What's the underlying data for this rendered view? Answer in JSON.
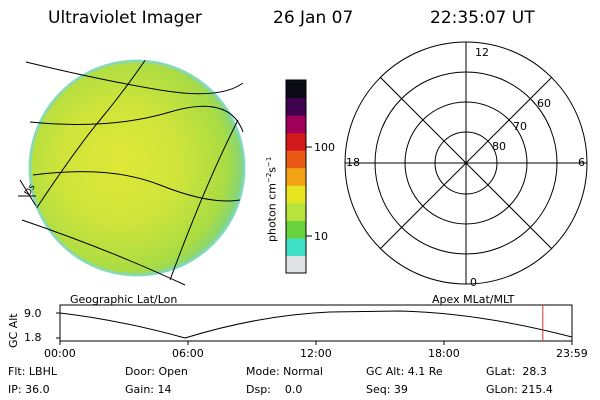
{
  "header": {
    "title": "Ultraviolet Imager",
    "date": "26 Jan 07",
    "time": "22:35:07 UT"
  },
  "colorbar": {
    "unit_label": "photon cm",
    "unit_sup1": "−2",
    "unit_mid": "s",
    "unit_sup2": "−1",
    "tick_100": "100",
    "tick_10": "10",
    "colors": [
      "#dfe3e5",
      "#3fe0c8",
      "#6ad23c",
      "#b8e23c",
      "#e6e620",
      "#f2a416",
      "#ea5a16",
      "#d21a1a",
      "#a0005a",
      "#400050",
      "#0a0a14"
    ]
  },
  "globe": {
    "label": "Geographic Lat/Lon",
    "limb_marker": "Ds"
  },
  "polar": {
    "label": "Apex MLat/MLT",
    "mlt_top": "12",
    "mlt_left": "18",
    "mlt_right": "6",
    "mlt_bottom": "0",
    "lat_60": "60",
    "lat_70": "70",
    "lat_80": "80"
  },
  "orbit": {
    "axis_label": "GC Alt",
    "y_high": "9.0",
    "y_low": "1.8",
    "x_ticks": [
      "00:00",
      "06:00",
      "12:00",
      "18:00",
      "23:59"
    ],
    "current_time_fraction": 0.943,
    "marker_color": "#cc3333"
  },
  "status": {
    "row1": {
      "flt": "Flt: LBHL",
      "door": "Door: Open",
      "mode": "Mode: Normal",
      "gcalt": "GC Alt: 4.1 Re",
      "glat": "GLat:  28.3"
    },
    "row2": {
      "ip": "IP: 36.0",
      "gain": "Gain: 14",
      "dsp": "Dsp:    0.0",
      "seq": "Seq: 39",
      "glon": "GLon: 215.4"
    }
  }
}
